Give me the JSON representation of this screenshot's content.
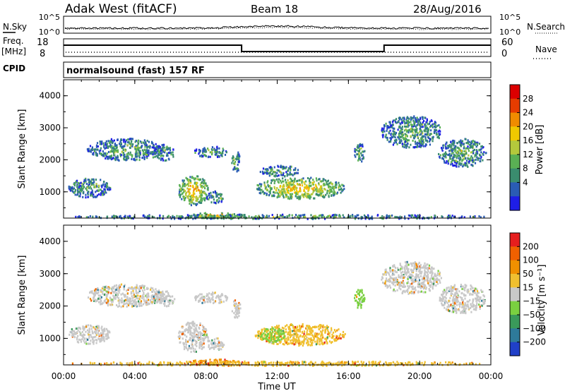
{
  "header": {
    "station": "Adak West (fitACF)",
    "beam": "Beam 18",
    "date": "28/Aug/2016"
  },
  "status_panels": {
    "nsky_label": "N.Sky",
    "nsky_ticks": [
      "10^5",
      "10^0"
    ],
    "nsearch_label": "N.Search",
    "nsearch_ticks": [
      "10^5",
      "10^0"
    ],
    "freq_label": "Freq.",
    "freq_unit": "[MHz]",
    "freq_ticks": [
      "18",
      "8"
    ],
    "nave_label": "Nave",
    "nave_ticks": [
      "60",
      "0"
    ],
    "cpid_label": "CPID",
    "cpid_text": "normalsound (fast) 157 RF"
  },
  "chart_data": [
    {
      "type": "heatmap",
      "name": "power",
      "ylabel": "Slant Range [km]",
      "yticks": [
        "1000",
        "2000",
        "3000",
        "4000"
      ],
      "ylim": [
        180,
        4500
      ],
      "colorbar_label": "Power [dB]",
      "colorbar_ticks": [
        "28",
        "24",
        "20",
        "16",
        "12",
        "8",
        "4"
      ],
      "colorbar_colors": [
        "#1e1ee6",
        "#2a5cb4",
        "#3a8c6e",
        "#5ab054",
        "#b4c83c",
        "#f0c800",
        "#f08c00",
        "#e63c00",
        "#dc0000"
      ],
      "clusters": [
        {
          "t0": 0.2,
          "t1": 2.6,
          "r0": 850,
          "r1": 1450,
          "level": 9
        },
        {
          "t0": 1.3,
          "t1": 5.6,
          "r0": 2000,
          "r1": 2700,
          "level": 10
        },
        {
          "t0": 5.0,
          "t1": 6.2,
          "r0": 2000,
          "r1": 2500,
          "level": 9
        },
        {
          "t0": 6.4,
          "t1": 8.1,
          "r0": 600,
          "r1": 1550,
          "level": 18
        },
        {
          "t0": 8.0,
          "t1": 9.0,
          "r0": 650,
          "r1": 1050,
          "level": 12
        },
        {
          "t0": 7.3,
          "t1": 9.2,
          "r0": 2100,
          "r1": 2450,
          "level": 12
        },
        {
          "t0": 9.4,
          "t1": 9.9,
          "r0": 1650,
          "r1": 2300,
          "level": 10
        },
        {
          "t0": 10.7,
          "t1": 15.8,
          "r0": 800,
          "r1": 1480,
          "level": 17
        },
        {
          "t0": 11.0,
          "t1": 13.2,
          "r0": 1500,
          "r1": 1850,
          "level": 6
        },
        {
          "t0": 16.3,
          "t1": 16.9,
          "r0": 1950,
          "r1": 2550,
          "level": 7
        },
        {
          "t0": 17.8,
          "t1": 21.2,
          "r0": 2400,
          "r1": 3400,
          "level": 8
        },
        {
          "t0": 21.0,
          "t1": 23.7,
          "r0": 1800,
          "r1": 2700,
          "level": 7
        },
        {
          "t0": 7.0,
          "t1": 10.0,
          "r0": 200,
          "r1": 380,
          "level": 20
        },
        {
          "t0": 0.3,
          "t1": 23.8,
          "r0": 180,
          "r1": 320,
          "level": 6
        }
      ]
    },
    {
      "type": "heatmap",
      "name": "velocity",
      "ylabel": "Slant Range [km]",
      "yticks": [
        "1000",
        "2000",
        "3000",
        "4000"
      ],
      "ylim": [
        180,
        4500
      ],
      "colorbar_label": "Velocity [m s⁻¹]",
      "colorbar_ticks": [
        "200",
        "100",
        "50",
        "15",
        "−15",
        "−50",
        "−100",
        "−200"
      ],
      "colorbar_colors": [
        "#2040c8",
        "#2e7a9a",
        "#3a9a5a",
        "#7ad040",
        "#c8c8c8",
        "#f0c030",
        "#f09000",
        "#f06000",
        "#e61e1e"
      ],
      "clusters": [
        {
          "t0": 0.2,
          "t1": 2.6,
          "r0": 850,
          "r1": 1450,
          "level": 4
        },
        {
          "t0": 1.3,
          "t1": 5.6,
          "r0": 2000,
          "r1": 2700,
          "level": 4
        },
        {
          "t0": 5.0,
          "t1": 6.2,
          "r0": 2000,
          "r1": 2500,
          "level": 4
        },
        {
          "t0": 6.4,
          "t1": 8.1,
          "r0": 600,
          "r1": 1550,
          "level": 4
        },
        {
          "t0": 8.0,
          "t1": 9.0,
          "r0": 650,
          "r1": 1050,
          "level": 4
        },
        {
          "t0": 7.3,
          "t1": 9.2,
          "r0": 2100,
          "r1": 2450,
          "level": 4
        },
        {
          "t0": 9.4,
          "t1": 9.9,
          "r0": 1650,
          "r1": 2300,
          "level": 4
        },
        {
          "t0": 10.7,
          "t1": 15.8,
          "r0": 800,
          "r1": 1480,
          "level": 5
        },
        {
          "t0": 11.0,
          "t1": 12.4,
          "r0": 900,
          "r1": 1350,
          "level": 3
        },
        {
          "t0": 16.3,
          "t1": 16.9,
          "r0": 1950,
          "r1": 2550,
          "level": 3
        },
        {
          "t0": 17.8,
          "t1": 21.2,
          "r0": 2400,
          "r1": 3400,
          "level": 4
        },
        {
          "t0": 21.0,
          "t1": 23.7,
          "r0": 1800,
          "r1": 2700,
          "level": 4
        },
        {
          "t0": 7.0,
          "t1": 10.0,
          "r0": 200,
          "r1": 380,
          "level": 6
        },
        {
          "t0": 0.3,
          "t1": 23.8,
          "r0": 180,
          "r1": 320,
          "level": 5
        }
      ]
    }
  ],
  "time_axis": {
    "label": "Time UT",
    "ticks": [
      "00:00",
      "04:00",
      "08:00",
      "12:00",
      "16:00",
      "20:00",
      "00:00"
    ],
    "xlim": [
      0,
      24
    ]
  },
  "frequency_trace": [
    {
      "t0": 0,
      "t1": 10,
      "level": "high"
    },
    {
      "t0": 10,
      "t1": 18,
      "level": "low"
    },
    {
      "t0": 18,
      "t1": 24,
      "level": "high"
    }
  ]
}
